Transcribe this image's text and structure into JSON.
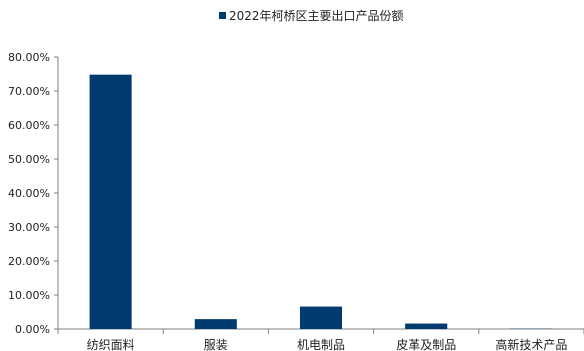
{
  "chart_data": {
    "type": "bar",
    "title": "",
    "xlabel": "",
    "ylabel": "",
    "categories": [
      "纺织面料",
      "服装",
      "机电制品",
      "皮革及制品",
      "高新技术产品"
    ],
    "series": [
      {
        "name": "2022年柯桥区主要出口产品份额",
        "values": [
          74.8,
          2.9,
          6.6,
          1.6,
          0.1
        ],
        "color": "#003b70"
      }
    ],
    "ylim": [
      0,
      80
    ],
    "y_ticks": [
      0,
      10,
      20,
      30,
      40,
      50,
      60,
      70,
      80
    ],
    "y_tick_labels": [
      "0.00%",
      "10.00%",
      "20.00%",
      "30.00%",
      "40.00%",
      "50.00%",
      "60.00%",
      "70.00%",
      "80.00%"
    ],
    "legend_position": "top-center",
    "grid": false
  }
}
